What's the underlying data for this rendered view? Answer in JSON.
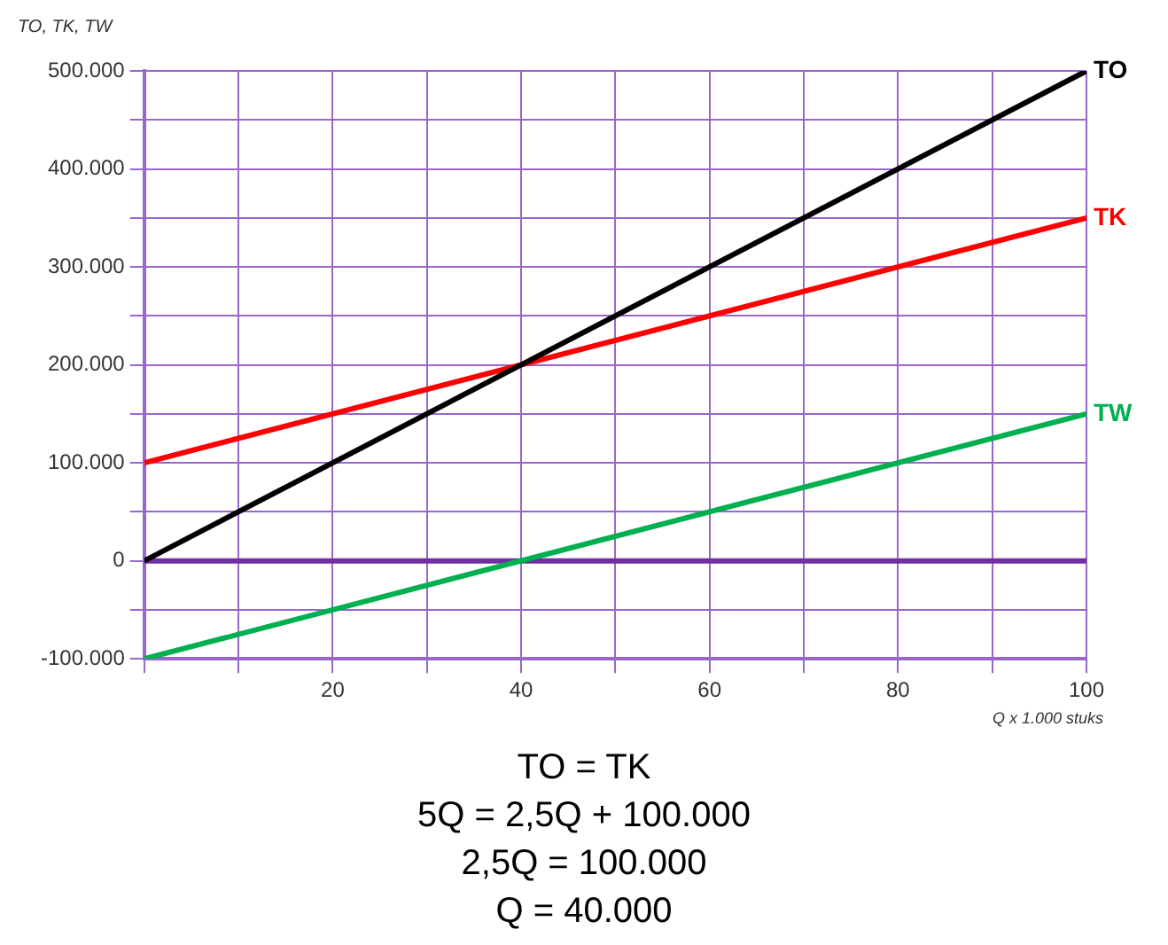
{
  "chart_data": {
    "type": "line",
    "ylabel": "TO, TK, TW",
    "xlabel": "Q x 1.000 stuks",
    "x": [
      0,
      100
    ],
    "series": [
      {
        "name": "TO",
        "color": "#000000",
        "values": [
          0,
          500000
        ]
      },
      {
        "name": "TK",
        "color": "#ff0000",
        "values": [
          100000,
          350000
        ]
      },
      {
        "name": "TW",
        "color": "#00b050",
        "values": [
          -100000,
          150000
        ]
      }
    ],
    "xlim": [
      0,
      100
    ],
    "xticks": [
      {
        "value": 0,
        "label": null
      },
      {
        "value": 10,
        "label": null
      },
      20,
      {
        "value": 30,
        "label": null
      },
      40,
      {
        "value": 50,
        "label": null
      },
      60,
      {
        "value": 70,
        "label": null
      },
      80,
      {
        "value": 90,
        "label": null
      },
      100
    ],
    "ylim": [
      -100000,
      500000
    ],
    "yticks": [
      {
        "value": -100000,
        "label": "-100.000"
      },
      {
        "value": -50000,
        "label": null
      },
      0,
      {
        "value": 50000,
        "label": null
      },
      {
        "value": 100000,
        "label": "100.000"
      },
      {
        "value": 150000,
        "label": null
      },
      {
        "value": 200000,
        "label": "200.000"
      },
      {
        "value": 250000,
        "label": null
      },
      {
        "value": 300000,
        "label": "300.000"
      },
      {
        "value": 350000,
        "label": null
      },
      {
        "value": 400000,
        "label": "400.000"
      },
      {
        "value": 450000,
        "label": null
      },
      {
        "value": 500000,
        "label": "500.000"
      }
    ],
    "ref_lines": [
      {
        "axis": "y",
        "value": 0,
        "color": "#7030a0"
      }
    ],
    "grid": true,
    "legend": false,
    "marker": "none",
    "line_style": "solid",
    "annotations": [
      "TO = TK",
      "5Q = 2,5Q + 100.000",
      "2,5Q = 100.000",
      "Q = 40.000"
    ]
  }
}
